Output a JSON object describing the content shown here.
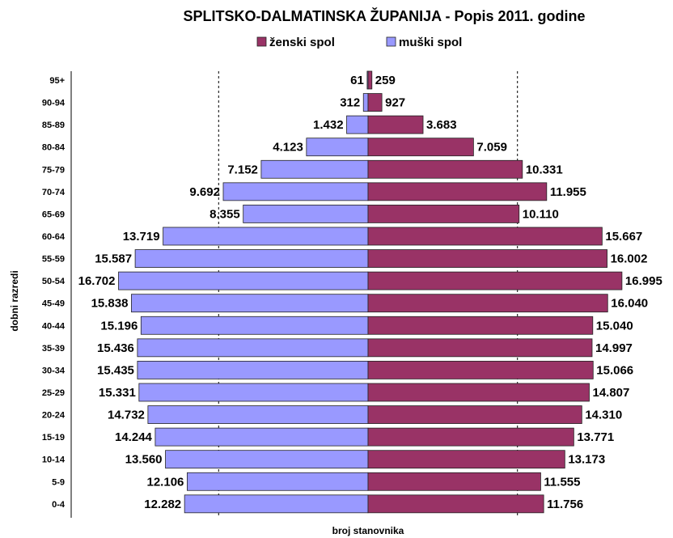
{
  "chart_data": {
    "type": "bar",
    "orientation": "horizontal-pyramid",
    "title": "SPLITSKO-DALMATINSKA ŽUPANIJA - Popis 2011. godine",
    "xlabel": "broj stanovnika",
    "ylabel": "dobni razredi",
    "categories": [
      "95+",
      "90-94",
      "85-89",
      "80-84",
      "75-79",
      "70-74",
      "65-69",
      "60-64",
      "55-59",
      "50-54",
      "45-49",
      "40-44",
      "35-39",
      "30-34",
      "25-29",
      "20-24",
      "15-19",
      "10-14",
      "5-9",
      "0-4"
    ],
    "series": [
      {
        "name": "ženski spol",
        "side": "right",
        "color": "#993366",
        "values": [
          259,
          927,
          3683,
          7059,
          10331,
          11955,
          10110,
          15667,
          16002,
          16995,
          16040,
          15040,
          14997,
          15066,
          14807,
          14310,
          13771,
          13173,
          11555,
          11756
        ],
        "labels": [
          "259",
          "927",
          "3.683",
          "7.059",
          "10.331",
          "11.955",
          "10.110",
          "15.667",
          "16.002",
          "16.995",
          "16.040",
          "15.040",
          "14.997",
          "15.066",
          "14.807",
          "14.310",
          "13.771",
          "13.173",
          "11.555",
          "11.756"
        ]
      },
      {
        "name": "muški spol",
        "side": "left",
        "color": "#9999ff",
        "values": [
          61,
          312,
          1432,
          4123,
          7152,
          9692,
          8355,
          13719,
          15587,
          16702,
          15838,
          15196,
          15436,
          15435,
          15331,
          14732,
          14244,
          13560,
          12106,
          12282
        ],
        "labels": [
          "61",
          "312",
          "1.432",
          "4.123",
          "7.152",
          "9.692",
          "8.355",
          "13.719",
          "15.587",
          "16.702",
          "15.838",
          "15.196",
          "15.436",
          "15.435",
          "15.331",
          "14.732",
          "14.244",
          "13.560",
          "12.106",
          "12.282"
        ]
      }
    ],
    "xlim": [
      -17000,
      17000
    ],
    "grid": "vertical-dashed",
    "legend_position": "top-center"
  }
}
